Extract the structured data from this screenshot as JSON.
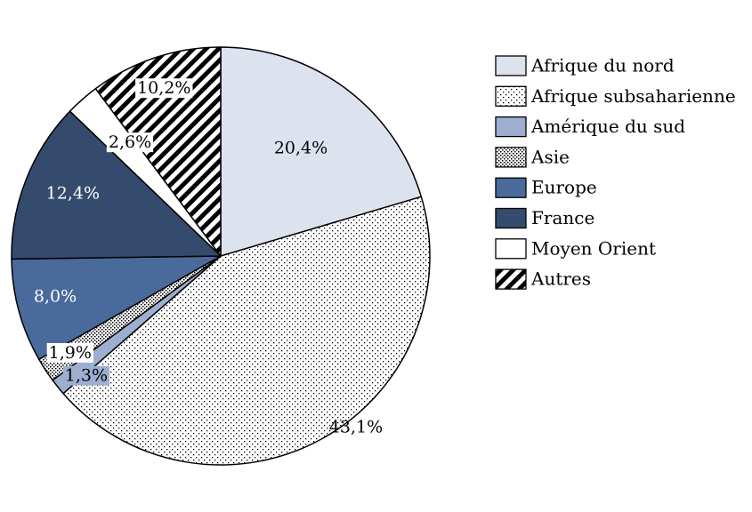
{
  "chart_data": {
    "type": "pie",
    "title": "",
    "legend_position": "right",
    "slices": [
      {
        "name": "Afrique du nord",
        "value": 20.4,
        "label": "20,4%",
        "color": "#dce3ef",
        "pattern": "solid"
      },
      {
        "name": "Afrique subsaharienne",
        "value": 43.1,
        "label": "43,1%",
        "color": "#ffffff",
        "pattern": "dots"
      },
      {
        "name": "Amérique du sud",
        "value": 1.3,
        "label": "1,3%",
        "color": "#9daed0",
        "pattern": "solid"
      },
      {
        "name": "Asie",
        "value": 1.9,
        "label": "1,9%",
        "color": "#ffffff",
        "pattern": "dense-dots"
      },
      {
        "name": "Europe",
        "value": 8.0,
        "label": "8,0%",
        "color": "#4a6a9c",
        "pattern": "solid"
      },
      {
        "name": "France",
        "value": 12.4,
        "label": "12,4%",
        "color": "#354b6e",
        "pattern": "solid"
      },
      {
        "name": "Moyen Orient",
        "value": 2.6,
        "label": "2,6%",
        "color": "#ffffff",
        "pattern": "solid"
      },
      {
        "name": "Autres",
        "value": 10.2,
        "label": "10,2%",
        "color": "#ffffff",
        "pattern": "diagonal-stripes"
      }
    ]
  }
}
